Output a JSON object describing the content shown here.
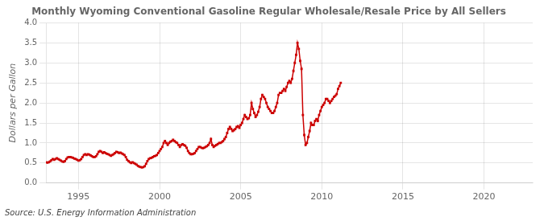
{
  "chart_data": {
    "type": "line",
    "title": "Monthly Wyoming Conventional Gasoline Regular Wholesale/Resale Price by All Sellers",
    "ylabel": "Dollars per Gallon",
    "annotations": [
      "Source: U.S. Energy Information Administration"
    ],
    "color": "#CC0000",
    "marker": "square",
    "grid": true,
    "xlim": [
      1993.0,
      2023.0
    ],
    "ylim": [
      0.0,
      4.0
    ],
    "xticks": [
      1995,
      2000,
      2005,
      2010,
      2015,
      2020
    ],
    "yticks": [
      {
        "value": 0.0,
        "label": "0.0"
      },
      0.5,
      {
        "value": 1.0,
        "label": "1.0"
      },
      1.5,
      {
        "value": 2.0,
        "label": "2.0"
      },
      2.5,
      {
        "value": 3.0,
        "label": "3.0"
      },
      3.5,
      {
        "value": 4.0,
        "label": "4.0"
      }
    ],
    "x": [
      1993.0,
      1993.083,
      1993.167,
      1993.25,
      1993.333,
      1993.417,
      1993.5,
      1993.583,
      1993.667,
      1993.75,
      1993.833,
      1993.917,
      1994.0,
      1994.083,
      1994.167,
      1994.25,
      1994.333,
      1994.417,
      1994.5,
      1994.583,
      1994.667,
      1994.75,
      1994.833,
      1994.917,
      1995.0,
      1995.083,
      1995.167,
      1995.25,
      1995.333,
      1995.417,
      1995.5,
      1995.583,
      1995.667,
      1995.75,
      1995.833,
      1995.917,
      1996.0,
      1996.083,
      1996.167,
      1996.25,
      1996.333,
      1996.417,
      1996.5,
      1996.583,
      1996.667,
      1996.75,
      1996.833,
      1996.917,
      1997.0,
      1997.083,
      1997.167,
      1997.25,
      1997.333,
      1997.417,
      1997.5,
      1997.583,
      1997.667,
      1997.75,
      1997.833,
      1997.917,
      1998.0,
      1998.083,
      1998.167,
      1998.25,
      1998.333,
      1998.417,
      1998.5,
      1998.583,
      1998.667,
      1998.75,
      1998.833,
      1998.917,
      1999.0,
      1999.083,
      1999.167,
      1999.25,
      1999.333,
      1999.417,
      1999.5,
      1999.583,
      1999.667,
      1999.75,
      1999.833,
      1999.917,
      2000.0,
      2000.083,
      2000.167,
      2000.25,
      2000.333,
      2000.417,
      2000.5,
      2000.583,
      2000.667,
      2000.75,
      2000.833,
      2000.917,
      2001.0,
      2001.083,
      2001.167,
      2001.25,
      2001.333,
      2001.417,
      2001.5,
      2001.583,
      2001.667,
      2001.75,
      2001.833,
      2001.917,
      2002.0,
      2002.083,
      2002.167,
      2002.25,
      2002.333,
      2002.417,
      2002.5,
      2002.583,
      2002.667,
      2002.75,
      2002.833,
      2002.917,
      2003.0,
      2003.083,
      2003.167,
      2003.25,
      2003.333,
      2003.417,
      2003.5,
      2003.583,
      2003.667,
      2003.75,
      2003.833,
      2003.917,
      2004.0,
      2004.083,
      2004.167,
      2004.25,
      2004.333,
      2004.417,
      2004.5,
      2004.583,
      2004.667,
      2004.75,
      2004.833,
      2004.917,
      2005.0,
      2005.083,
      2005.167,
      2005.25,
      2005.333,
      2005.417,
      2005.5,
      2005.583,
      2005.667,
      2005.75,
      2005.833,
      2005.917,
      2006.0,
      2006.083,
      2006.167,
      2006.25,
      2006.333,
      2006.417,
      2006.5,
      2006.583,
      2006.667,
      2006.75,
      2006.833,
      2006.917,
      2007.0,
      2007.083,
      2007.167,
      2007.25,
      2007.333,
      2007.417,
      2007.5,
      2007.583,
      2007.667,
      2007.75,
      2007.833,
      2007.917,
      2008.0,
      2008.083,
      2008.167,
      2008.25,
      2008.333,
      2008.417,
      2008.5,
      2008.583,
      2008.667,
      2008.75,
      2008.833,
      2008.917,
      2009.0,
      2009.083,
      2009.167,
      2009.25,
      2009.333,
      2009.417,
      2009.5,
      2009.583,
      2009.667,
      2009.75,
      2009.833,
      2009.917,
      2010.0,
      2010.083,
      2010.167,
      2010.25,
      2010.333,
      2010.417,
      2010.5,
      2010.583,
      2010.667,
      2010.75,
      2010.833,
      2010.917,
      2011.0,
      2011.083,
      2011.167
    ],
    "values": [
      0.52,
      0.51,
      0.52,
      0.54,
      0.57,
      0.6,
      0.58,
      0.6,
      0.62,
      0.6,
      0.58,
      0.56,
      0.54,
      0.53,
      0.55,
      0.6,
      0.64,
      0.65,
      0.65,
      0.64,
      0.63,
      0.61,
      0.6,
      0.58,
      0.56,
      0.57,
      0.6,
      0.65,
      0.7,
      0.72,
      0.7,
      0.72,
      0.71,
      0.69,
      0.67,
      0.65,
      0.65,
      0.67,
      0.72,
      0.78,
      0.8,
      0.78,
      0.75,
      0.77,
      0.75,
      0.73,
      0.72,
      0.7,
      0.68,
      0.7,
      0.72,
      0.75,
      0.78,
      0.77,
      0.75,
      0.76,
      0.74,
      0.72,
      0.7,
      0.65,
      0.58,
      0.55,
      0.52,
      0.5,
      0.52,
      0.5,
      0.48,
      0.46,
      0.43,
      0.41,
      0.4,
      0.39,
      0.4,
      0.42,
      0.48,
      0.55,
      0.6,
      0.62,
      0.63,
      0.65,
      0.67,
      0.68,
      0.7,
      0.75,
      0.8,
      0.85,
      0.9,
      1.0,
      1.05,
      1.0,
      0.95,
      1.0,
      1.03,
      1.05,
      1.08,
      1.05,
      1.02,
      1.0,
      0.95,
      0.9,
      0.95,
      0.97,
      0.95,
      0.93,
      0.88,
      0.8,
      0.75,
      0.72,
      0.72,
      0.73,
      0.75,
      0.8,
      0.85,
      0.9,
      0.9,
      0.88,
      0.87,
      0.88,
      0.9,
      0.92,
      0.95,
      1.0,
      1.1,
      0.95,
      0.9,
      0.93,
      0.95,
      0.97,
      1.0,
      1.0,
      1.02,
      1.05,
      1.1,
      1.15,
      1.25,
      1.35,
      1.4,
      1.35,
      1.3,
      1.32,
      1.35,
      1.4,
      1.42,
      1.38,
      1.45,
      1.5,
      1.6,
      1.7,
      1.65,
      1.6,
      1.62,
      1.7,
      2.0,
      1.85,
      1.75,
      1.65,
      1.7,
      1.78,
      1.9,
      2.1,
      2.2,
      2.15,
      2.1,
      2.0,
      1.9,
      1.85,
      1.8,
      1.75,
      1.75,
      1.8,
      1.9,
      2.0,
      2.2,
      2.25,
      2.25,
      2.3,
      2.35,
      2.3,
      2.4,
      2.5,
      2.55,
      2.5,
      2.6,
      2.8,
      3.0,
      3.2,
      3.5,
      3.35,
      3.05,
      2.85,
      1.7,
      1.2,
      0.95,
      1.0,
      1.15,
      1.3,
      1.5,
      1.45,
      1.45,
      1.55,
      1.6,
      1.55,
      1.7,
      1.8,
      1.9,
      1.95,
      2.0,
      2.1,
      2.1,
      2.05,
      2.0,
      2.05,
      2.1,
      2.15,
      2.18,
      2.22,
      2.35,
      2.42,
      2.5
    ]
  }
}
